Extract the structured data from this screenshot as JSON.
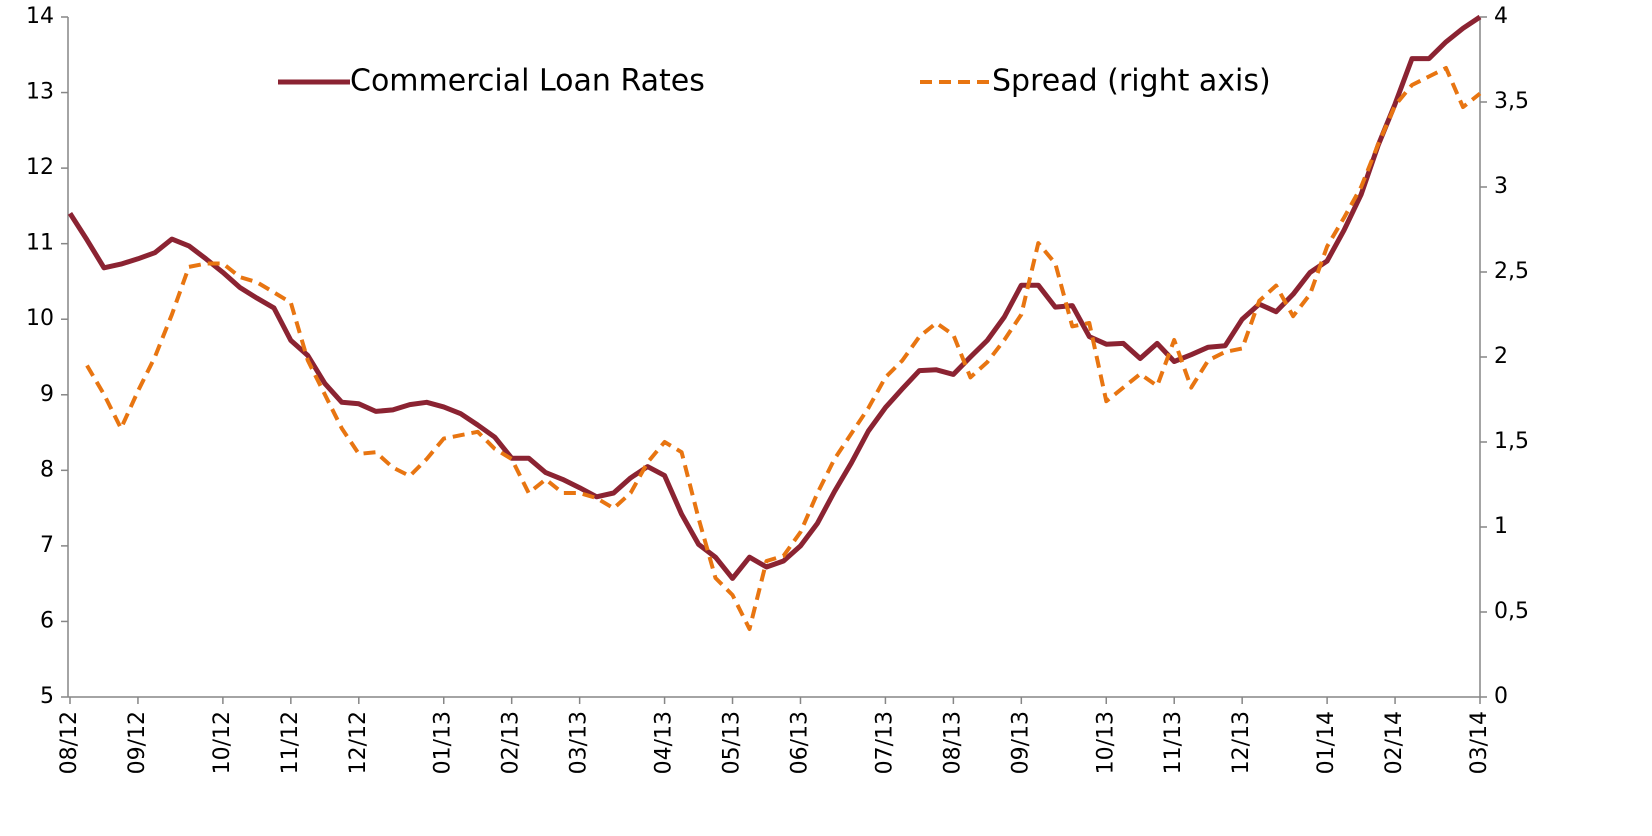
{
  "chart_data": {
    "type": "line",
    "categories": [
      "08/12",
      null,
      null,
      null,
      "09/12",
      null,
      null,
      null,
      null,
      "10/12",
      null,
      null,
      null,
      "11/12",
      null,
      null,
      null,
      "12/12",
      null,
      null,
      null,
      null,
      "01/13",
      null,
      null,
      null,
      "02/13",
      null,
      null,
      null,
      "03/13",
      null,
      null,
      null,
      null,
      "04/13",
      null,
      null,
      null,
      "05/13",
      null,
      null,
      null,
      "06/13",
      null,
      null,
      null,
      null,
      "07/13",
      null,
      null,
      null,
      "08/13",
      null,
      null,
      null,
      "09/13",
      null,
      null,
      null,
      null,
      "10/13",
      null,
      null,
      null,
      "11/13",
      null,
      null,
      null,
      "12/13",
      null,
      null,
      null,
      null,
      "01/14",
      null,
      null,
      null,
      "02/14",
      null,
      null,
      null,
      null,
      "03/14"
    ],
    "series": [
      {
        "name": "Commercial Loan Rates",
        "color": "#8b2332",
        "dash": false,
        "values": [
          11.4,
          11.05,
          10.68,
          10.73,
          10.8,
          10.88,
          11.06,
          10.97,
          10.8,
          10.62,
          10.42,
          10.28,
          10.15,
          9.72,
          9.52,
          9.15,
          8.9,
          8.88,
          8.78,
          8.8,
          8.87,
          8.9,
          8.84,
          8.75,
          8.6,
          8.44,
          8.16,
          8.16,
          7.97,
          7.88,
          7.77,
          7.65,
          7.7,
          7.9,
          8.05,
          7.93,
          7.42,
          7.02,
          6.85,
          6.57,
          6.85,
          6.72,
          6.8,
          7.0,
          7.3,
          7.72,
          8.1,
          8.52,
          8.83,
          9.08,
          9.32,
          9.33,
          9.27,
          9.5,
          9.72,
          10.03,
          10.45,
          10.45,
          10.16,
          10.18,
          9.77,
          9.67,
          9.68,
          9.48,
          9.68,
          9.44,
          9.53,
          9.63,
          9.65,
          10.0,
          10.2,
          10.1,
          10.33,
          10.62,
          10.77,
          11.18,
          11.65,
          12.3,
          12.85,
          13.45,
          13.45,
          13.67,
          13.85,
          14.0
        ]
      },
      {
        "name": "Spread (right axis)",
        "color": "#e87511",
        "dash": true,
        "axis": "y2",
        "values": [
          null,
          1.95,
          1.78,
          1.58,
          1.8,
          2.0,
          2.25,
          2.53,
          2.55,
          2.55,
          2.47,
          2.44,
          2.38,
          2.32,
          1.98,
          1.78,
          1.58,
          1.43,
          1.44,
          1.35,
          1.3,
          1.4,
          1.52,
          1.54,
          1.56,
          1.46,
          1.4,
          1.2,
          1.28,
          1.2,
          1.2,
          1.17,
          1.11,
          1.2,
          1.38,
          1.5,
          1.44,
          1.05,
          0.7,
          0.6,
          0.4,
          0.8,
          0.83,
          0.97,
          1.2,
          1.4,
          1.55,
          1.7,
          1.88,
          1.98,
          2.12,
          2.2,
          2.13,
          1.88,
          1.97,
          2.1,
          2.25,
          2.67,
          2.55,
          2.18,
          2.2,
          1.74,
          1.82,
          1.9,
          1.83,
          2.1,
          1.82,
          1.98,
          2.03,
          2.05,
          2.33,
          2.42,
          2.24,
          2.37,
          2.65,
          2.82,
          3.0,
          3.25,
          3.48,
          3.6,
          3.65,
          3.7,
          3.47,
          3.55
        ]
      }
    ],
    "ylim": [
      5,
      14
    ],
    "yticks": [
      5,
      6,
      7,
      8,
      9,
      10,
      11,
      12,
      13,
      14
    ],
    "y2lim": [
      0,
      4
    ],
    "y2ticks": [
      0,
      {
        "value": 0.5,
        "label": "0,5"
      },
      1,
      {
        "value": 1.5,
        "label": "1,5"
      },
      2,
      {
        "value": 2.5,
        "label": "2,5"
      },
      3,
      {
        "value": 3.5,
        "label": "3,5"
      },
      4
    ],
    "grid": false,
    "legend": "top"
  }
}
